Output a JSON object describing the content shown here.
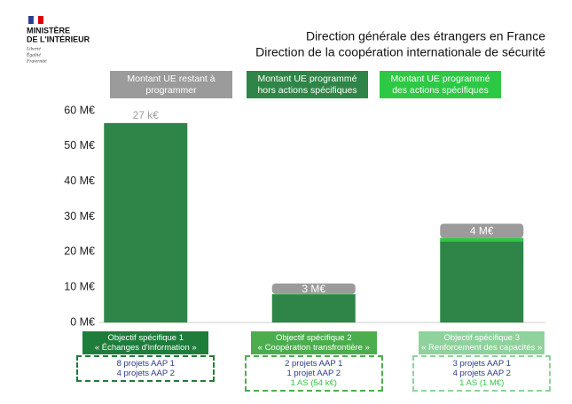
{
  "header": {
    "ministry": [
      "MINISTÈRE",
      "DE L'INTÉRIEUR"
    ],
    "motto": [
      "Liberté",
      "Égalité",
      "Fraternité"
    ]
  },
  "chart_data": {
    "type": "stacked_bar",
    "title": "Direction générale des étrangers en France",
    "subtitle": "Direction de la coopération internationale de sécurité",
    "categories": [
      "Objectif spécifique 1",
      "Objectif spécifique 2",
      "Objectif spécifique 3"
    ],
    "category_subtitles": [
      "« Échanges d'information »",
      "« Coopération transfrontière »",
      "« Renforcement des capacités »"
    ],
    "category_colors": [
      "#1e7d3a",
      "#4cad4f",
      "#8fd29c"
    ],
    "category_notes": [
      [
        "8 projets AAP 1",
        "4 projets AAP 2"
      ],
      [
        "2 projets AAP 1",
        "1 projet AAP 2"
      ],
      [
        "3 projets AAP 1",
        "4 projets AAP 2"
      ]
    ],
    "as_notes": [
      null,
      "1 AS (54 k€)",
      "1 AS (1 M€)"
    ],
    "series": [
      {
        "name": "Montant UE restant à programmer",
        "color": "#9b9b9b",
        "values": [
          0.027,
          3,
          4
        ],
        "value_labels": [
          "27 k€",
          "3 M€",
          "4 M€"
        ]
      },
      {
        "name": "Montant UE programmé hors actions spécifiques",
        "color": "#2f8547",
        "values": [
          56.5,
          8,
          23
        ]
      },
      {
        "name": "Montant UE programmé des actions spécifiques",
        "color": "#2ec944",
        "values": [
          null,
          0.054,
          1
        ]
      }
    ],
    "ylim": [
      0,
      60
    ],
    "yticks": [
      {
        "value": 0,
        "label": "0 M€"
      },
      {
        "value": 10,
        "label": "10 M€"
      },
      {
        "value": 20,
        "label": "20 M€"
      },
      {
        "value": 30,
        "label": "30 M€"
      },
      {
        "value": 40,
        "label": "40 M€"
      },
      {
        "value": 50,
        "label": "50 M€"
      },
      {
        "value": 60,
        "label": "60 M€"
      }
    ]
  }
}
